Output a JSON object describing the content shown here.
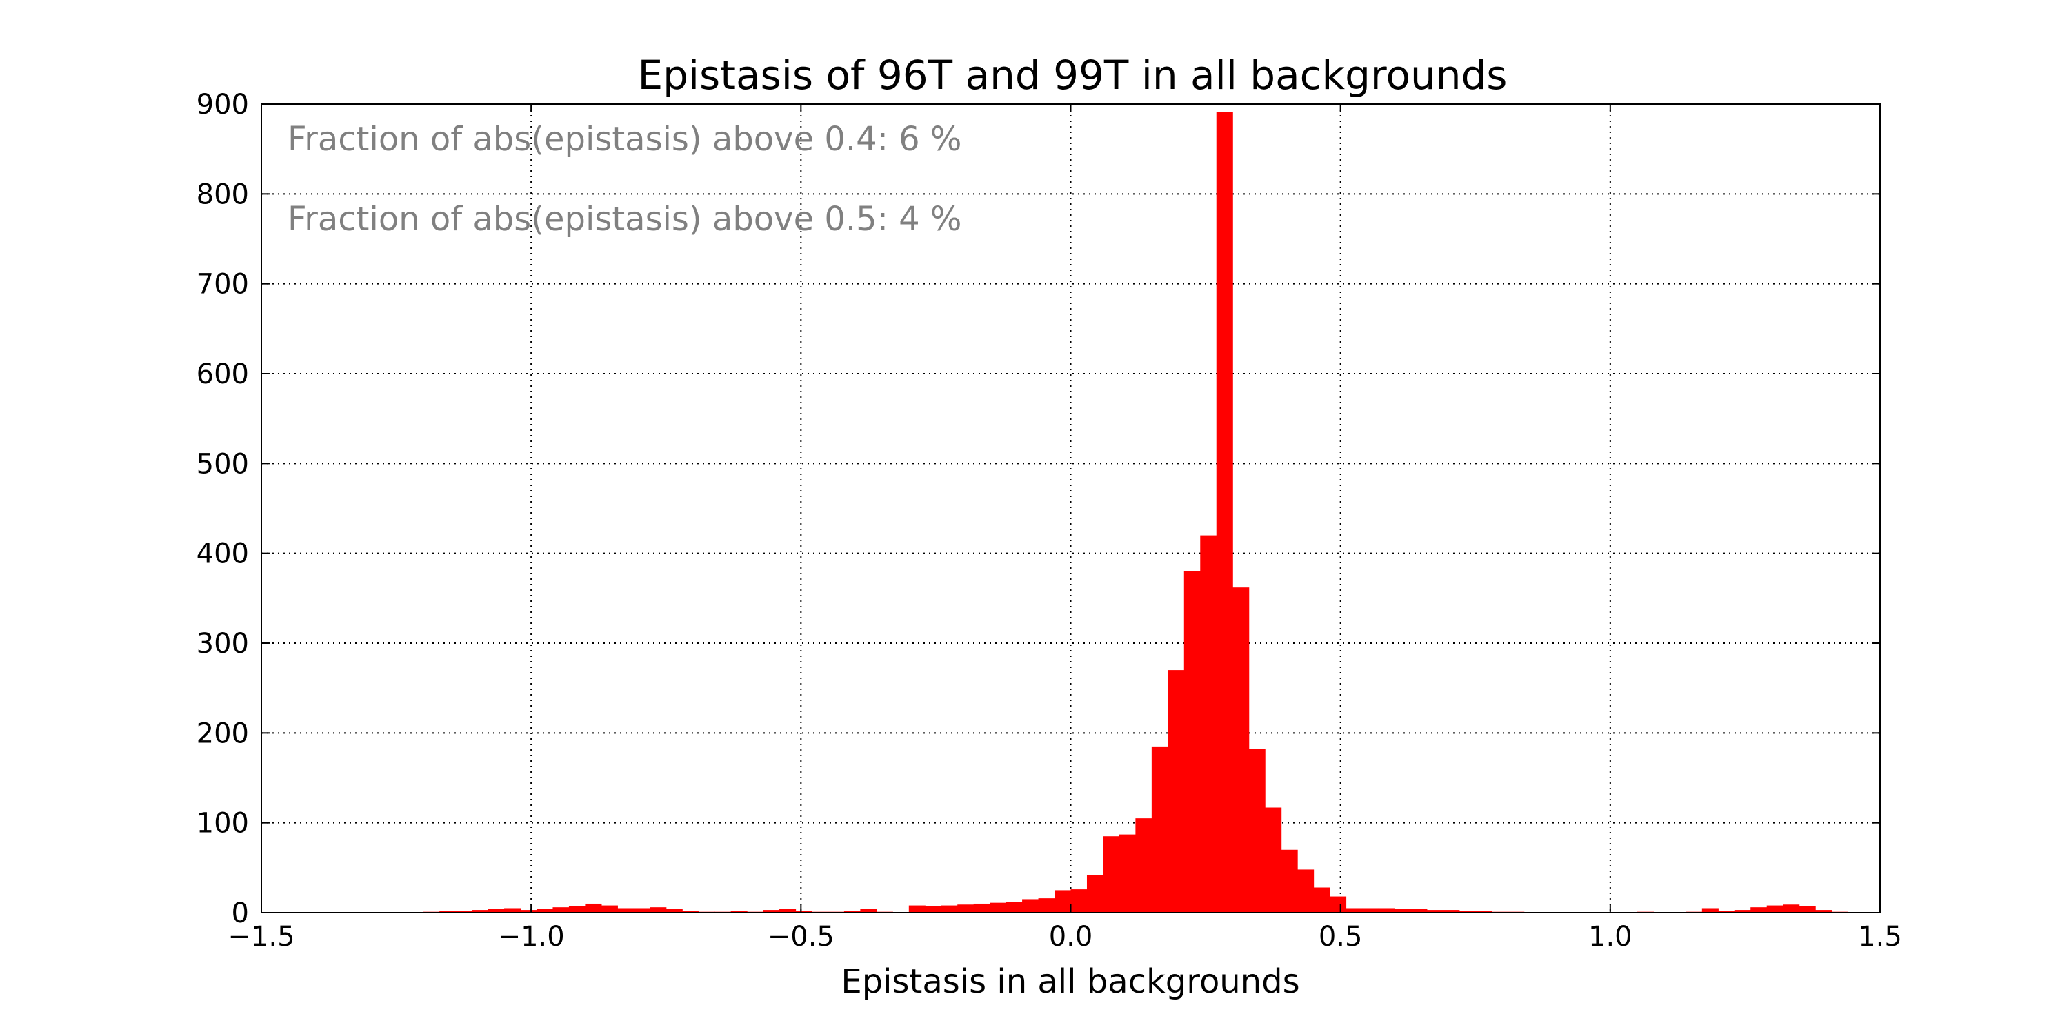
{
  "chart_data": {
    "type": "bar",
    "title": "Epistasis of 96T and 99T in all backgrounds",
    "xlabel": "Epistasis in all backgrounds",
    "ylabel": "",
    "xlim": [
      -1.5,
      1.5
    ],
    "ylim": [
      0,
      900
    ],
    "grid": true,
    "x_ticks": [
      "−1.5",
      "−1.0",
      "−0.5",
      "0.0",
      "0.5",
      "1.0",
      "1.5"
    ],
    "y_ticks": [
      "0",
      "100",
      "200",
      "300",
      "400",
      "500",
      "600",
      "700",
      "800",
      "900"
    ],
    "x_tick_values": [
      -1.5,
      -1.0,
      -0.5,
      0.0,
      0.5,
      1.0,
      1.5
    ],
    "y_tick_values": [
      0,
      100,
      200,
      300,
      400,
      500,
      600,
      700,
      800,
      900
    ],
    "annotations": [
      "Fraction of abs(epistasis) above 0.4: 6 %",
      "Fraction of abs(epistasis) above 0.5: 4 %"
    ],
    "bar_color": "#ff0000",
    "bin_edges_range": [
      -1.5,
      1.5
    ],
    "bin_width": 0.03,
    "values": [
      0,
      0,
      0,
      0,
      0,
      0,
      0,
      0,
      0,
      0,
      1,
      2,
      2,
      3,
      4,
      5,
      3,
      4,
      6,
      7,
      10,
      8,
      5,
      5,
      6,
      4,
      2,
      1,
      1,
      2,
      1,
      3,
      4,
      2,
      1,
      1,
      2,
      4,
      1,
      0,
      8,
      7,
      8,
      9,
      10,
      11,
      12,
      15,
      16,
      25,
      26,
      42,
      85,
      87,
      105,
      185,
      270,
      380,
      420,
      891,
      362,
      182,
      117,
      70,
      48,
      28,
      18,
      5,
      5,
      5,
      4,
      4,
      3,
      3,
      2,
      2,
      1,
      1,
      0,
      0,
      0,
      0,
      0,
      0,
      0,
      1,
      0,
      0,
      1,
      5,
      2,
      3,
      6,
      8,
      9,
      7,
      3,
      1,
      0,
      0
    ]
  }
}
